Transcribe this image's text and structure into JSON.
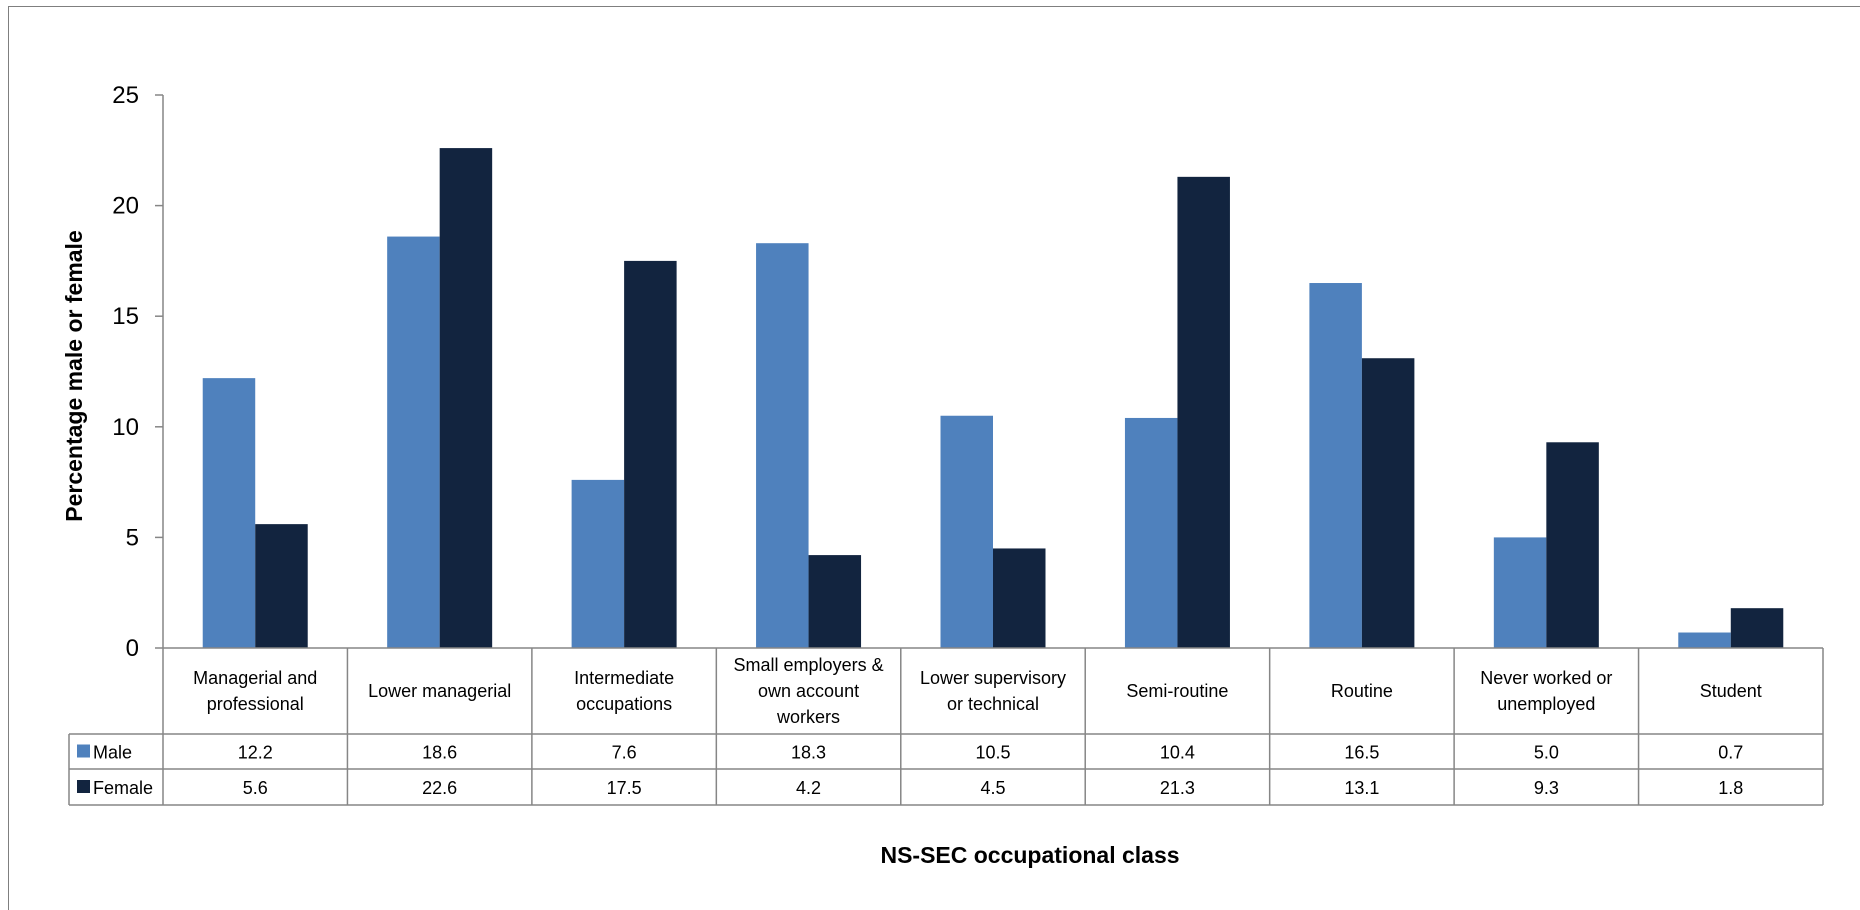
{
  "chart_data": {
    "type": "bar",
    "title": "",
    "xlabel": "NS-SEC occupational class",
    "ylabel": "Percentage male or female",
    "ylim": [
      0,
      25
    ],
    "yticks": [
      0,
      5,
      10,
      15,
      20,
      25
    ],
    "grid": false,
    "legend": "data-table",
    "categories": [
      [
        "Managerial and",
        "professional"
      ],
      [
        "Lower managerial"
      ],
      [
        "Intermediate",
        "occupations"
      ],
      [
        "Small employers &",
        "own account",
        "workers"
      ],
      [
        "Lower supervisory",
        "or technical"
      ],
      [
        "Semi-routine"
      ],
      [
        "Routine"
      ],
      [
        "Never worked or",
        "unemployed"
      ],
      [
        "Student"
      ]
    ],
    "series": [
      {
        "name": "Male",
        "color": "#4f81bd",
        "values": [
          12.2,
          18.6,
          7.6,
          18.3,
          10.5,
          10.4,
          16.5,
          5.0,
          0.7
        ],
        "labels": [
          "12.2",
          "18.6",
          "7.6",
          "18.3",
          "10.5",
          "10.4",
          "16.5",
          "5.0",
          "0.7"
        ]
      },
      {
        "name": "Female",
        "color": "#12243f",
        "values": [
          5.6,
          22.6,
          17.5,
          4.2,
          4.5,
          21.3,
          13.1,
          9.3,
          1.8
        ],
        "labels": [
          "5.6",
          "22.6",
          "17.5",
          "4.2",
          "4.5",
          "21.3",
          "13.1",
          "9.3",
          "1.8"
        ]
      }
    ]
  }
}
